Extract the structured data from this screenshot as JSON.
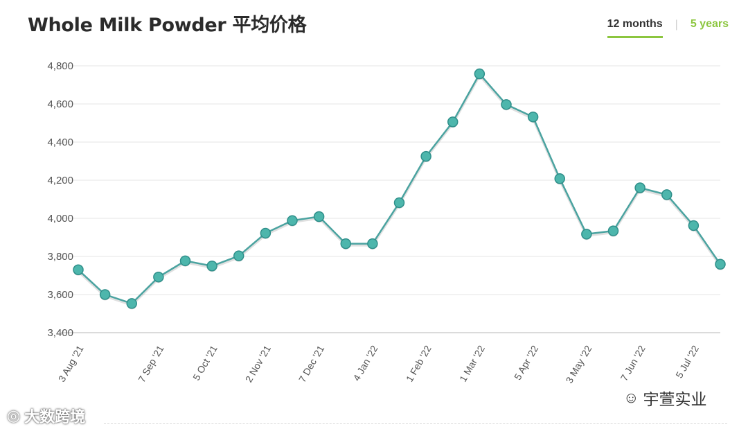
{
  "title": "Whole Milk Powder 平均价格",
  "tabs": [
    {
      "label": "12 months",
      "active": true
    },
    {
      "label": "5 years",
      "active": false
    }
  ],
  "tab_separator": "|",
  "colors": {
    "line": "#4aa3a0",
    "marker": "#4db6ac",
    "marker_edge": "#2f8f8a",
    "grid": "#e6e6e6",
    "active_tab_underline": "#8cc63f"
  },
  "watermarks": {
    "left": {
      "icon": "weibo-icon",
      "text": "大数跨境"
    },
    "right": {
      "icon": "wechat-icon",
      "text": "宇萱实业"
    }
  },
  "chart_data": {
    "type": "line",
    "title": "Whole Milk Powder 平均价格",
    "xlabel": "",
    "ylabel": "",
    "ylim": [
      3400,
      4800
    ],
    "yticks": [
      3400,
      3600,
      3800,
      4000,
      4200,
      4400,
      4600,
      4800
    ],
    "ytick_labels": [
      "3,400",
      "3,600",
      "3,800",
      "4,000",
      "4,200",
      "4,400",
      "4,600",
      "4,800"
    ],
    "grid": true,
    "x_tick_labels": [
      "3 Aug '21",
      "7 Sep '21",
      "5 Oct '21",
      "2 Nov '21",
      "7 Dec '21",
      "4 Jan '22",
      "1 Feb '22",
      "1 Mar '22",
      "5 Apr '22",
      "3 May '22",
      "7 Jun '22",
      "5 Jul '22"
    ],
    "x_tick_point_index": [
      0,
      3,
      5,
      7,
      9,
      11,
      13,
      15,
      17,
      19,
      21,
      23
    ],
    "series": [
      {
        "values": [
          3730,
          3600,
          3553,
          3692,
          3777,
          3750,
          3803,
          3922,
          3988,
          4009,
          3867,
          3867,
          4082,
          4325,
          4506,
          4758,
          4597,
          4532,
          4208,
          3917,
          3934,
          4160,
          4124,
          3962,
          3759
        ]
      }
    ]
  }
}
